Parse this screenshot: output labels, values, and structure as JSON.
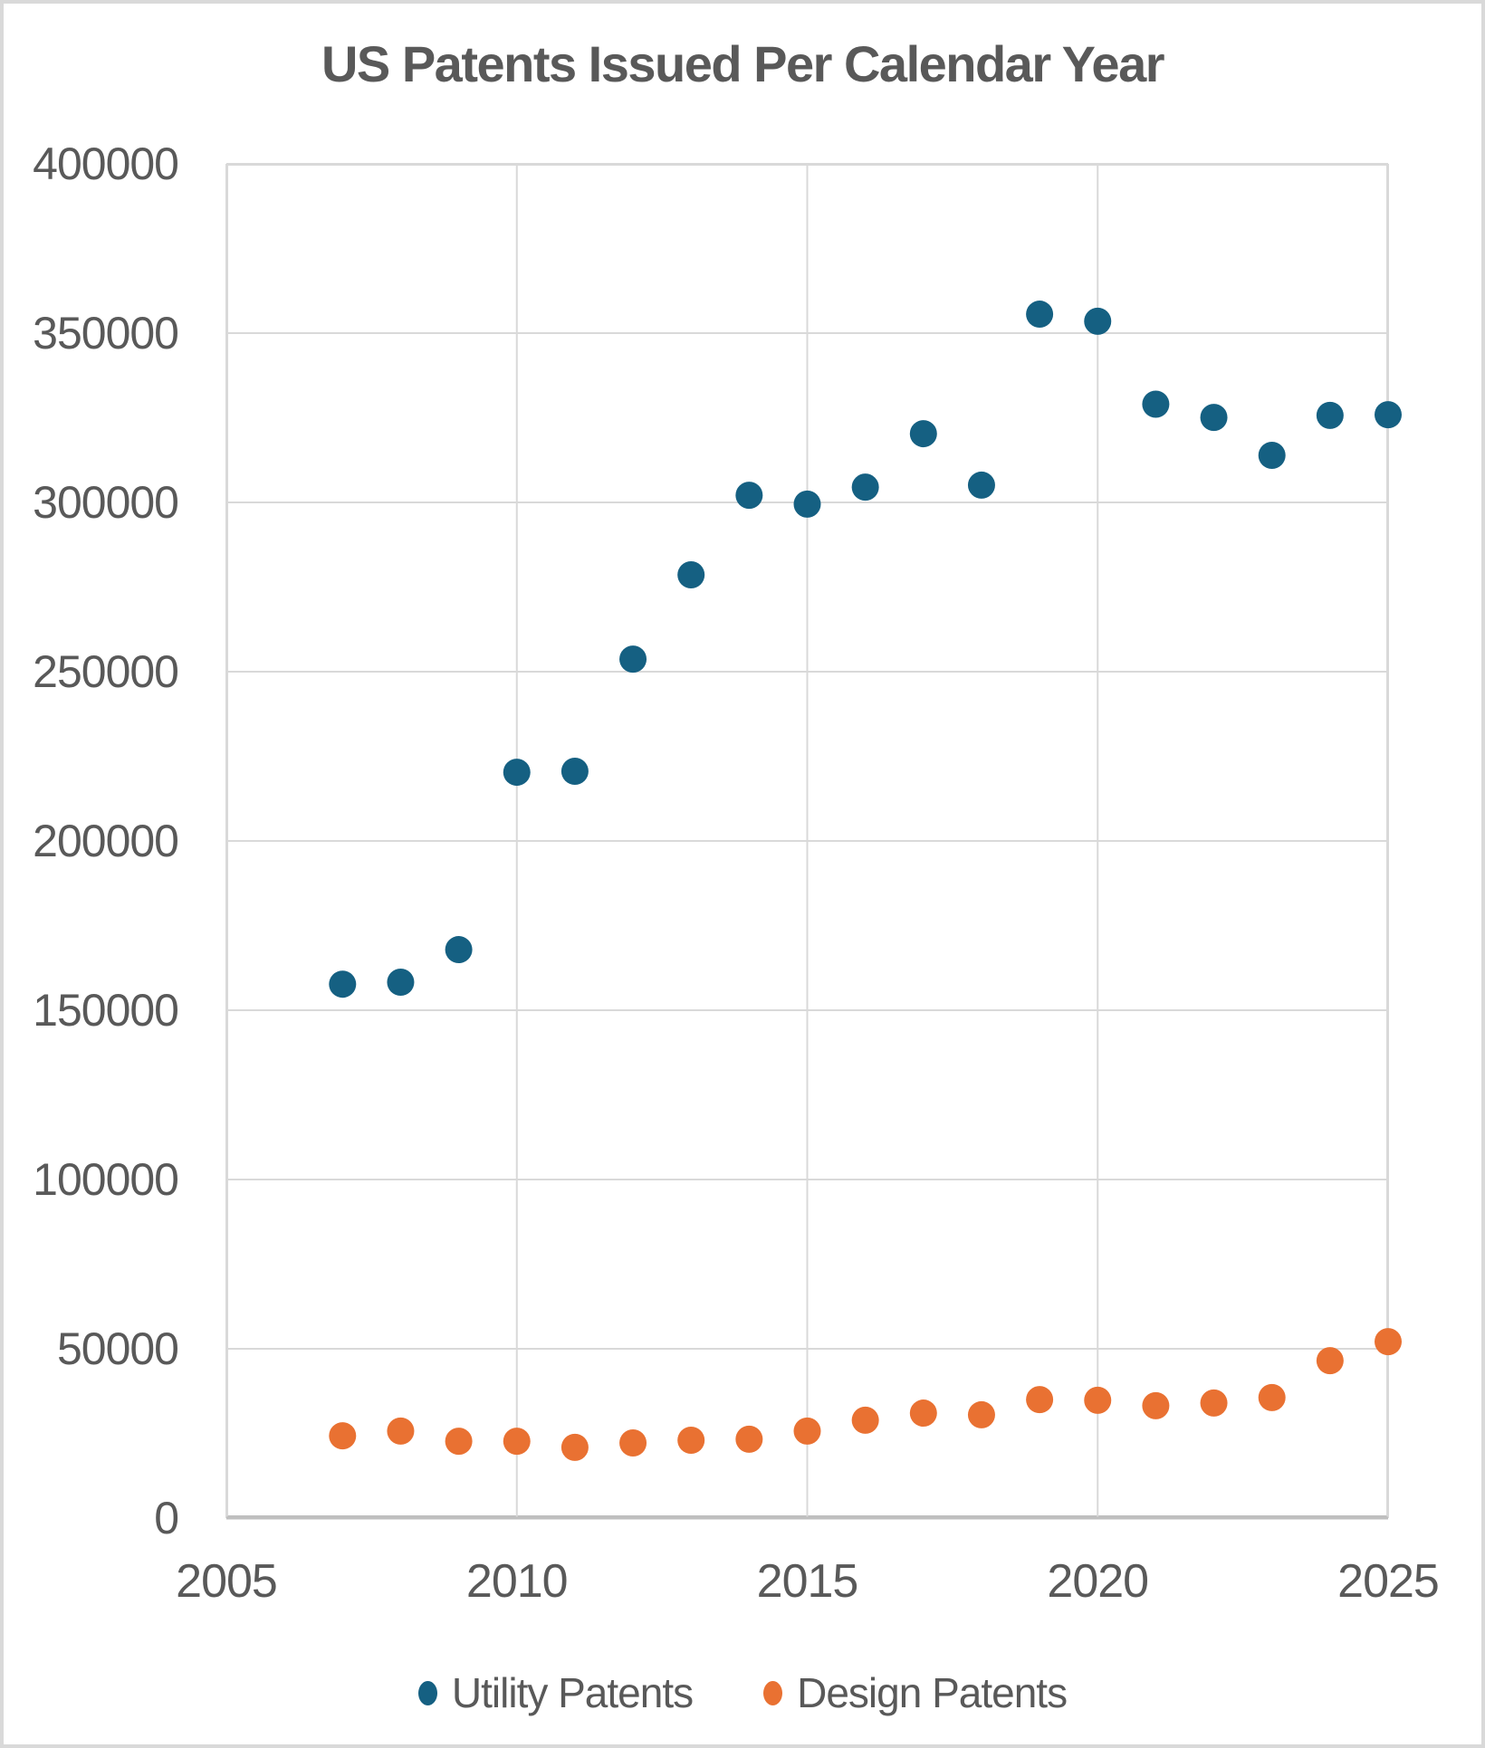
{
  "chart_data": {
    "type": "scatter",
    "title": "US Patents Issued Per Calendar Year",
    "xlabel": "",
    "ylabel": "",
    "x": [
      2007,
      2008,
      2009,
      2010,
      2011,
      2012,
      2013,
      2014,
      2015,
      2016,
      2017,
      2018,
      2019,
      2020,
      2021,
      2022,
      2023,
      2024,
      2025
    ],
    "series": [
      {
        "name": "Utility Patents",
        "color": "#156082",
        "values": [
          157700,
          158300,
          167900,
          220300,
          220600,
          253700,
          278600,
          302100,
          299500,
          304500,
          320300,
          305100,
          355600,
          353500,
          329000,
          325100,
          313900,
          325700,
          325900
        ]
      },
      {
        "name": "Design Patents",
        "color": "#E97132",
        "values": [
          24300,
          25700,
          22700,
          22700,
          20900,
          22200,
          23000,
          23300,
          25700,
          28900,
          31000,
          30500,
          35000,
          34800,
          33200,
          34000,
          35600,
          46500,
          52100
        ]
      }
    ],
    "xlim": [
      2005,
      2025
    ],
    "ylim": [
      0,
      400000
    ],
    "x_ticks": [
      2005,
      2010,
      2015,
      2020,
      2025
    ],
    "y_ticks": [
      0,
      50000,
      100000,
      150000,
      200000,
      250000,
      300000,
      350000,
      400000
    ],
    "grid": true,
    "legend_position": "bottom",
    "colors": {
      "text": "#595959",
      "gridline": "#d9d9d9",
      "axis_line": "#bfbfbf",
      "background": "#ffffff",
      "frame_border": "#d9d9d9"
    }
  }
}
